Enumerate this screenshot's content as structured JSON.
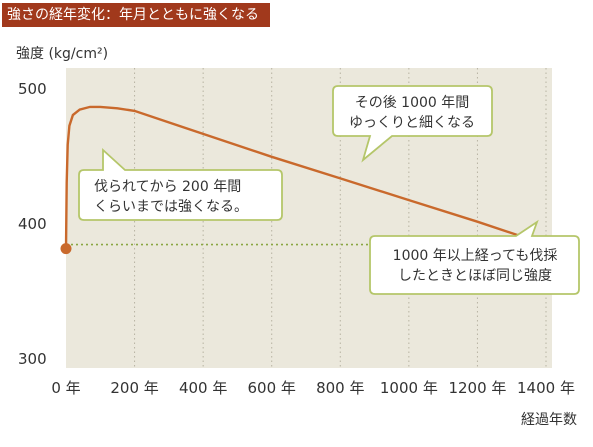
{
  "header": {
    "title": "強さの経年変化：年月とともに強くなる"
  },
  "colors": {
    "title_bg": "#a1391c",
    "plot_bg": "#ebe8dc",
    "line": "#c9692c",
    "point": "#c9692c",
    "callout_border": "#b5c66a",
    "reference_line": "#8aa642"
  },
  "chart_data": {
    "type": "line",
    "title": "",
    "ylabel": "強度 (kg/cm²)",
    "xlabel": "経過年数",
    "xlim": [
      0,
      1400
    ],
    "ylim": [
      300,
      500
    ],
    "xticks": [
      0,
      200,
      400,
      600,
      800,
      1000,
      1200,
      1400
    ],
    "xtick_labels": [
      "0 年",
      "200 年",
      "400 年",
      "600 年",
      "800 年",
      "1000 年",
      "1200 年",
      "1400 年"
    ],
    "yticks": [
      300,
      400,
      500
    ],
    "ytick_labels": [
      "300",
      "400",
      "500"
    ],
    "grid": true,
    "series": [
      {
        "x": [
          0,
          2,
          5,
          10,
          20,
          40,
          70,
          100,
          150,
          200,
          400,
          600,
          800,
          1000,
          1200,
          1400
        ],
        "y": [
          381,
          430,
          458,
          472,
          480,
          484,
          486,
          486,
          485,
          483,
          466,
          449,
          433,
          417,
          401,
          384
        ]
      }
    ],
    "points": [
      {
        "x": 0,
        "y": 381
      },
      {
        "x": 1400,
        "y": 384
      }
    ],
    "reference_line": {
      "y": 384,
      "from_x": 0,
      "to_x": 1400
    },
    "annotations": [
      {
        "lines": [
          "伐られてから 200 年間",
          "くらいまでは強くなる。"
        ]
      },
      {
        "lines": [
          "その後 1000 年間",
          "ゆっくりと細くなる"
        ]
      },
      {
        "lines": [
          "1000 年以上経っても伐採",
          "したときとほぼ同じ強度"
        ]
      }
    ]
  }
}
